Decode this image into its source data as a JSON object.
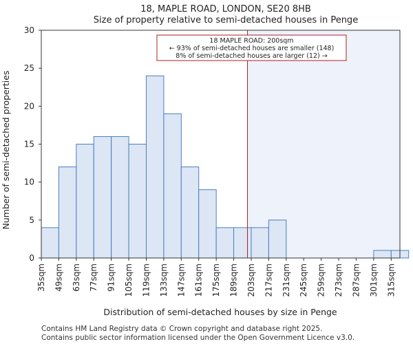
{
  "chart_data": {
    "type": "bar",
    "title": "18, MAPLE ROAD, LONDON, SE20 8HB",
    "subtitle": "Size of property relative to semi-detached houses in Penge",
    "xlabel": "Distribution of semi-detached houses by size in Penge",
    "ylabel": "Number of semi-detached properties",
    "categories": [
      "35sqm",
      "49sqm",
      "63sqm",
      "77sqm",
      "91sqm",
      "105sqm",
      "119sqm",
      "133sqm",
      "147sqm",
      "161sqm",
      "175sqm",
      "189sqm",
      "203sqm",
      "217sqm",
      "231sqm",
      "245sqm",
      "259sqm",
      "273sqm",
      "287sqm",
      "301sqm",
      "315sqm"
    ],
    "values": [
      4,
      12,
      15,
      16,
      16,
      15,
      24,
      19,
      12,
      9,
      4,
      4,
      4,
      5,
      0,
      0,
      0,
      0,
      0,
      1,
      1
    ],
    "ylim": [
      0,
      30
    ],
    "yticks": [
      0,
      5,
      10,
      15,
      20,
      25,
      30
    ],
    "xrange": [
      35,
      322
    ],
    "bin_width": 14,
    "marker": {
      "value": 200,
      "label_line1": "18 MAPLE ROAD: 200sqm",
      "label_line2": "← 93% of semi-detached houses are smaller (148)",
      "label_line3": "8% of semi-detached houses are larger (12) →"
    },
    "colors": {
      "bar_fill": "#dce6f5",
      "bar_stroke": "#4a7ebf",
      "marker": "#b01c1c",
      "highlight_fill": "#eef2fb"
    }
  },
  "footer": {
    "line1": "Contains HM Land Registry data © Crown copyright and database right 2025.",
    "line2": "Contains public sector information licensed under the Open Government Licence v3.0."
  }
}
